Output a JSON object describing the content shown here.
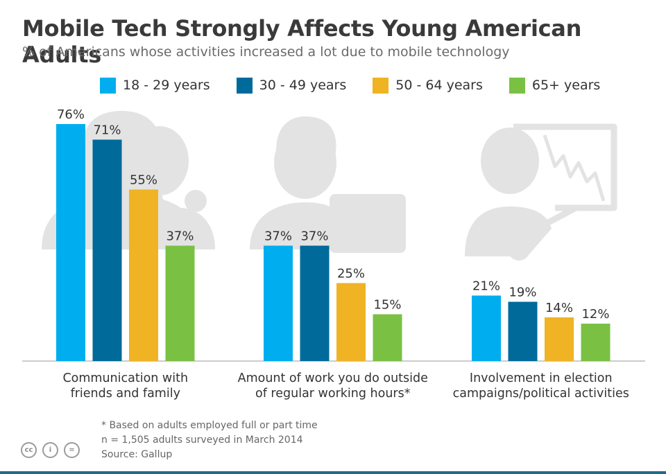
{
  "header": {
    "title": "Mobile Tech Strongly Affects Young American Adults",
    "subtitle": "% of Americans whose activities increased a lot due to mobile technology"
  },
  "colors": {
    "series": [
      "#00aeef",
      "#006a9a",
      "#f0b323",
      "#7ac143"
    ],
    "baseline": "#cccccc",
    "illustration": "#e3e3e3",
    "bottom_rule": "#1f6a8a"
  },
  "chart_data": {
    "type": "bar",
    "title": "Mobile Tech Strongly Affects Young American Adults",
    "subtitle": "% of Americans whose activities increased a lot due to mobile technology",
    "xlabel": "",
    "ylabel": "",
    "ylim": [
      0,
      80
    ],
    "legend_position": "top",
    "grid": false,
    "categories": [
      "Communication with\nfriends and family",
      "Amount of work you do outside\nof regular working hours*",
      "Involvement in election\ncampaigns/political activities"
    ],
    "series": [
      {
        "name": "18 - 29 years",
        "values": [
          76,
          37,
          21
        ],
        "labels": [
          "76%",
          "37%",
          "21%"
        ]
      },
      {
        "name": "30 - 49 years",
        "values": [
          71,
          37,
          19
        ],
        "labels": [
          "71%",
          "37%",
          "19%"
        ]
      },
      {
        "name": "50 - 64 years",
        "values": [
          55,
          25,
          14
        ],
        "labels": [
          "55%",
          "25%",
          "14%"
        ]
      },
      {
        "name": "65+ years",
        "values": [
          37,
          15,
          12
        ],
        "labels": [
          "37%",
          "15%",
          "12%"
        ]
      }
    ]
  },
  "footnotes": [
    "* Based on adults employed full or part time",
    "n = 1,505 adults surveyed in March 2014",
    "Source: Gallup"
  ],
  "license_icons": [
    "cc-icon",
    "attribution-icon",
    "no-derivatives-icon"
  ],
  "license_icon_glyphs": [
    "cc",
    "i",
    "="
  ]
}
